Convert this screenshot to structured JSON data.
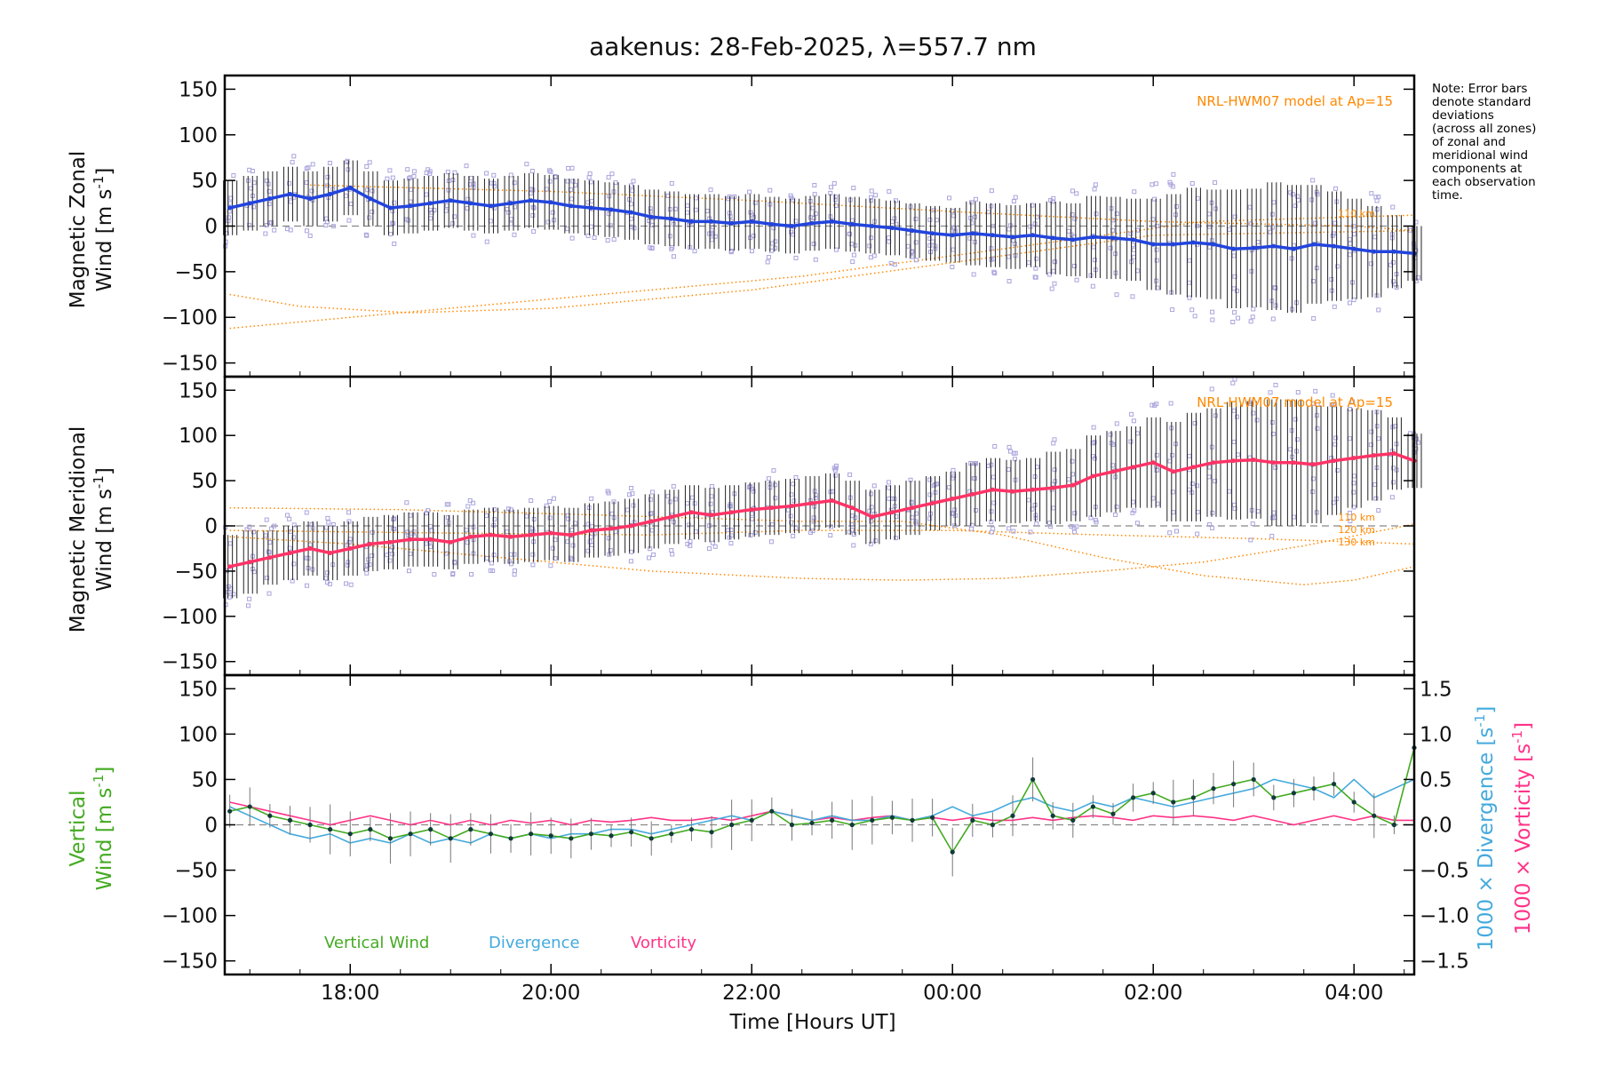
{
  "title": "aakenus: 28-Feb-2025, λ=557.7 nm",
  "note_lines": [
    "Note: Error bars",
    "denote standard",
    "deviations",
    "(across all zones)",
    "of zonal and",
    "meridional wind",
    "components at",
    "each observation",
    "time."
  ],
  "x_axis": {
    "label": "Time [Hours UT]",
    "range_hours": [
      16.75,
      28.6
    ],
    "ticks": [
      {
        "pos": 18,
        "label": "18:00"
      },
      {
        "pos": 20,
        "label": "20:00"
      },
      {
        "pos": 22,
        "label": "22:00"
      },
      {
        "pos": 24,
        "label": "00:00"
      },
      {
        "pos": 26,
        "label": "02:00"
      },
      {
        "pos": 28,
        "label": "04:00"
      }
    ]
  },
  "y_ticks": [
    150,
    100,
    50,
    0,
    -50,
    -100,
    -150
  ],
  "y_tick_labels": [
    "150",
    "100",
    "50",
    "0",
    "−50",
    "−100",
    "−150"
  ],
  "right_ticks": [
    1.5,
    1.0,
    0.5,
    0.0,
    -0.5,
    -1.0,
    -1.5
  ],
  "right_tick_labels": [
    "1.5",
    "1.0",
    "0.5",
    "0.0",
    "−0.5",
    "−1.0",
    "−1.5"
  ],
  "colors": {
    "zonal": "#2244dd",
    "meridional": "#ff3366",
    "vertical": "#44aa22",
    "divergence": "#44aadd",
    "vorticity": "#ff3388",
    "model": "#ff8800",
    "scatter": "#a9a4dd",
    "errbar": "#222222"
  },
  "chart_data": [
    {
      "type": "scatter",
      "panel": "zonal",
      "ylabel_line1": "Magnetic Zonal",
      "ylabel_line2": "Wind [m s",
      "ylabel_exp": "-1",
      "ylabel_close": "]",
      "ylim": [
        -165,
        165
      ],
      "model_label": "NRL-HWM07 model at Ap=15",
      "model_alt_labels": [
        "110 km"
      ],
      "series": [
        {
          "name": "Zonal wind",
          "x": [
            16.8,
            17.0,
            17.2,
            17.4,
            17.6,
            17.8,
            18.0,
            18.2,
            18.4,
            18.6,
            18.8,
            19.0,
            19.2,
            19.4,
            19.6,
            19.8,
            20.0,
            20.2,
            20.4,
            20.6,
            20.8,
            21.0,
            21.2,
            21.4,
            21.6,
            21.8,
            22.0,
            22.2,
            22.4,
            22.6,
            22.8,
            23.0,
            23.2,
            23.4,
            23.6,
            23.8,
            24.0,
            24.2,
            24.4,
            24.6,
            24.8,
            25.0,
            25.2,
            25.4,
            25.6,
            25.8,
            26.0,
            26.2,
            26.4,
            26.6,
            26.8,
            27.0,
            27.2,
            27.4,
            27.6,
            27.8,
            28.0,
            28.2,
            28.4,
            28.6
          ],
          "y": [
            20,
            25,
            30,
            35,
            30,
            35,
            42,
            30,
            20,
            22,
            25,
            28,
            25,
            22,
            25,
            28,
            26,
            22,
            20,
            18,
            15,
            10,
            8,
            5,
            5,
            3,
            5,
            2,
            0,
            3,
            5,
            2,
            0,
            -2,
            -5,
            -8,
            -10,
            -8,
            -10,
            -12,
            -10,
            -13,
            -15,
            -12,
            -13,
            -15,
            -20,
            -20,
            -18,
            -20,
            -25,
            -24,
            -22,
            -25,
            -20,
            -22,
            -25,
            -28,
            -28,
            -30
          ],
          "err": [
            30,
            30,
            30,
            30,
            30,
            30,
            30,
            30,
            30,
            30,
            30,
            30,
            30,
            30,
            30,
            30,
            30,
            30,
            30,
            30,
            30,
            30,
            30,
            30,
            30,
            30,
            30,
            30,
            30,
            30,
            30,
            30,
            30,
            30,
            30,
            30,
            30,
            35,
            35,
            35,
            35,
            40,
            40,
            45,
            45,
            45,
            50,
            55,
            60,
            60,
            65,
            65,
            70,
            70,
            65,
            60,
            55,
            50,
            40,
            30
          ]
        }
      ],
      "model_curves": [
        {
          "x": [
            16.8,
            18.5,
            20.5,
            22.5,
            24.5,
            26.5,
            28.6
          ],
          "y": [
            -112,
            -95,
            -75,
            -55,
            -25,
            5,
            12
          ]
        },
        {
          "x": [
            16.8,
            17.5,
            18.6,
            20.0,
            22.0,
            24.0,
            26.0,
            28.6
          ],
          "y": [
            -75,
            -88,
            -95,
            -90,
            -70,
            -40,
            -10,
            -5
          ]
        },
        {
          "x": [
            17.6,
            20.0,
            22.0,
            24.0,
            26.0,
            28.0,
            28.6
          ],
          "y": [
            45,
            38,
            28,
            16,
            5,
            0,
            -5
          ]
        }
      ]
    },
    {
      "type": "scatter",
      "panel": "meridional",
      "ylabel_line1": "Magnetic Meridional",
      "ylabel_line2": "Wind [m s",
      "ylabel_exp": "-1",
      "ylabel_close": "]",
      "ylim": [
        -165,
        165
      ],
      "model_label": "NRL-HWM07 model at Ap=15",
      "model_alt_labels": [
        "110 km",
        "120 km",
        "130 km"
      ],
      "series": [
        {
          "name": "Meridional wind",
          "x": [
            16.8,
            17.0,
            17.2,
            17.4,
            17.6,
            17.8,
            18.0,
            18.2,
            18.4,
            18.6,
            18.8,
            19.0,
            19.2,
            19.4,
            19.6,
            19.8,
            20.0,
            20.2,
            20.4,
            20.6,
            20.8,
            21.0,
            21.2,
            21.4,
            21.6,
            21.8,
            22.0,
            22.2,
            22.4,
            22.6,
            22.8,
            23.0,
            23.2,
            23.4,
            23.6,
            23.8,
            24.0,
            24.2,
            24.4,
            24.6,
            24.8,
            25.0,
            25.2,
            25.4,
            25.6,
            25.8,
            26.0,
            26.2,
            26.4,
            26.6,
            26.8,
            27.0,
            27.2,
            27.4,
            27.6,
            27.8,
            28.0,
            28.2,
            28.4,
            28.6
          ],
          "y": [
            -45,
            -40,
            -35,
            -30,
            -25,
            -30,
            -25,
            -20,
            -18,
            -15,
            -15,
            -18,
            -12,
            -10,
            -12,
            -10,
            -8,
            -10,
            -5,
            -3,
            0,
            5,
            10,
            15,
            12,
            15,
            18,
            20,
            22,
            25,
            28,
            20,
            10,
            15,
            20,
            25,
            30,
            35,
            40,
            38,
            40,
            42,
            45,
            55,
            60,
            65,
            70,
            60,
            65,
            70,
            72,
            73,
            70,
            70,
            68,
            72,
            75,
            78,
            80,
            72
          ],
          "err": [
            35,
            35,
            30,
            30,
            30,
            30,
            30,
            30,
            30,
            30,
            30,
            30,
            30,
            30,
            30,
            30,
            30,
            30,
            30,
            30,
            30,
            30,
            30,
            30,
            30,
            30,
            30,
            30,
            30,
            30,
            30,
            30,
            30,
            30,
            30,
            30,
            30,
            35,
            35,
            35,
            35,
            40,
            40,
            45,
            45,
            45,
            50,
            55,
            60,
            60,
            65,
            65,
            70,
            70,
            65,
            60,
            55,
            50,
            40,
            30
          ]
        }
      ],
      "model_curves": [
        {
          "x": [
            16.8,
            18.0,
            19.5,
            21.0,
            22.5,
            23.5,
            24.5,
            25.5,
            26.5,
            27.5,
            28.6
          ],
          "y": [
            -12,
            -20,
            -35,
            -50,
            -58,
            -60,
            -58,
            -50,
            -40,
            -22,
            2
          ]
        },
        {
          "x": [
            16.8,
            18.5,
            20.5,
            22.5,
            23.5,
            24.5,
            25.5,
            26.5,
            27.5,
            28.0,
            28.6
          ],
          "y": [
            20,
            18,
            12,
            5,
            5,
            -10,
            -35,
            -55,
            -65,
            -60,
            -45
          ]
        },
        {
          "x": [
            16.8,
            19.0,
            21.0,
            22.5,
            24.0,
            25.5,
            27.0,
            28.6
          ],
          "y": [
            -5,
            -8,
            -10,
            -5,
            -5,
            -10,
            -14,
            -20
          ]
        }
      ]
    },
    {
      "type": "line",
      "panel": "vertical",
      "ylabel_line1": "Vertical",
      "ylabel_line2": "Wind [m s",
      "ylabel_exp": "-1",
      "ylabel_close": "]",
      "ylim": [
        -165,
        165
      ],
      "right_label_1": "1000 × Divergence [s",
      "right_label_2": "1000 × Vorticity [s",
      "right_exp": "-1",
      "right_close": "]",
      "right_ylim": [
        -1.65,
        1.65
      ],
      "legend": [
        "Vertical Wind",
        "Divergence",
        "Vorticity"
      ],
      "series": [
        {
          "name": "Vertical Wind",
          "axis": "left",
          "x": [
            16.8,
            17.0,
            17.2,
            17.4,
            17.6,
            17.8,
            18.0,
            18.2,
            18.4,
            18.6,
            18.8,
            19.0,
            19.2,
            19.4,
            19.6,
            19.8,
            20.0,
            20.2,
            20.4,
            20.6,
            20.8,
            21.0,
            21.2,
            21.4,
            21.6,
            21.8,
            22.0,
            22.2,
            22.4,
            22.6,
            22.8,
            23.0,
            23.2,
            23.4,
            23.6,
            23.8,
            24.0,
            24.2,
            24.4,
            24.6,
            24.8,
            25.0,
            25.2,
            25.4,
            25.6,
            25.8,
            26.0,
            26.2,
            26.4,
            26.6,
            26.8,
            27.0,
            27.2,
            27.4,
            27.6,
            27.8,
            28.0,
            28.2,
            28.4,
            28.6
          ],
          "y": [
            15,
            20,
            10,
            5,
            0,
            -5,
            -10,
            -5,
            -15,
            -10,
            -5,
            -15,
            -5,
            -10,
            -15,
            -10,
            -12,
            -15,
            -10,
            -12,
            -8,
            -15,
            -10,
            -5,
            -8,
            0,
            5,
            15,
            0,
            2,
            5,
            0,
            5,
            8,
            5,
            8,
            -30,
            5,
            0,
            10,
            50,
            10,
            5,
            20,
            12,
            30,
            35,
            25,
            30,
            40,
            45,
            50,
            30,
            35,
            40,
            45,
            25,
            10,
            0,
            85
          ]
        },
        {
          "name": "Divergence",
          "axis": "right",
          "x": [
            16.8,
            17.0,
            17.2,
            17.4,
            17.6,
            17.8,
            18.0,
            18.2,
            18.4,
            18.6,
            18.8,
            19.0,
            19.2,
            19.4,
            19.6,
            19.8,
            20.0,
            20.2,
            20.4,
            20.6,
            20.8,
            21.0,
            21.2,
            21.4,
            21.6,
            21.8,
            22.0,
            22.2,
            22.4,
            22.6,
            22.8,
            23.0,
            23.2,
            23.4,
            23.6,
            23.8,
            24.0,
            24.2,
            24.4,
            24.6,
            24.8,
            25.0,
            25.2,
            25.4,
            25.6,
            25.8,
            26.0,
            26.2,
            26.4,
            26.6,
            26.8,
            27.0,
            27.2,
            27.4,
            27.6,
            27.8,
            28.0,
            28.2,
            28.4,
            28.6
          ],
          "y": [
            0.2,
            0.1,
            0.0,
            -0.1,
            -0.15,
            -0.1,
            -0.2,
            -0.15,
            -0.2,
            -0.1,
            -0.2,
            -0.15,
            -0.2,
            -0.1,
            -0.15,
            -0.1,
            -0.15,
            -0.1,
            -0.1,
            -0.05,
            -0.05,
            -0.1,
            -0.05,
            0.0,
            0.05,
            0.1,
            0.05,
            0.15,
            0.1,
            0.05,
            0.1,
            0.05,
            0.05,
            0.1,
            0.05,
            0.1,
            0.2,
            0.1,
            0.15,
            0.25,
            0.3,
            0.2,
            0.15,
            0.25,
            0.2,
            0.3,
            0.25,
            0.2,
            0.25,
            0.3,
            0.35,
            0.4,
            0.5,
            0.45,
            0.4,
            0.3,
            0.5,
            0.3,
            0.4,
            0.5
          ]
        },
        {
          "name": "Vorticity",
          "axis": "right",
          "x": [
            16.8,
            17.0,
            17.2,
            17.4,
            17.6,
            17.8,
            18.0,
            18.2,
            18.4,
            18.6,
            18.8,
            19.0,
            19.2,
            19.4,
            19.6,
            19.8,
            20.0,
            20.2,
            20.4,
            20.6,
            20.8,
            21.0,
            21.2,
            21.4,
            21.6,
            21.8,
            22.0,
            22.2,
            22.4,
            22.6,
            22.8,
            23.0,
            23.2,
            23.4,
            23.6,
            23.8,
            24.0,
            24.2,
            24.4,
            24.6,
            24.8,
            25.0,
            25.2,
            25.4,
            25.6,
            25.8,
            26.0,
            26.2,
            26.4,
            26.6,
            26.8,
            27.0,
            27.2,
            27.4,
            27.6,
            27.8,
            28.0,
            28.2,
            28.4,
            28.6
          ],
          "y": [
            0.25,
            0.2,
            0.15,
            0.1,
            0.05,
            0.0,
            0.05,
            0.1,
            0.05,
            0.0,
            0.05,
            0.0,
            0.05,
            0.0,
            0.05,
            0.02,
            0.05,
            0.0,
            0.05,
            0.03,
            0.05,
            0.08,
            0.05,
            0.05,
            0.08,
            0.05,
            0.1,
            0.15,
            0.1,
            0.05,
            0.08,
            0.05,
            0.08,
            0.1,
            0.05,
            0.08,
            0.05,
            0.08,
            0.05,
            0.05,
            0.08,
            0.05,
            0.08,
            0.1,
            0.08,
            0.05,
            0.1,
            0.08,
            0.1,
            0.08,
            0.05,
            0.1,
            0.05,
            0.0,
            0.05,
            0.1,
            0.05,
            0.1,
            0.05,
            0.05
          ]
        }
      ]
    }
  ]
}
